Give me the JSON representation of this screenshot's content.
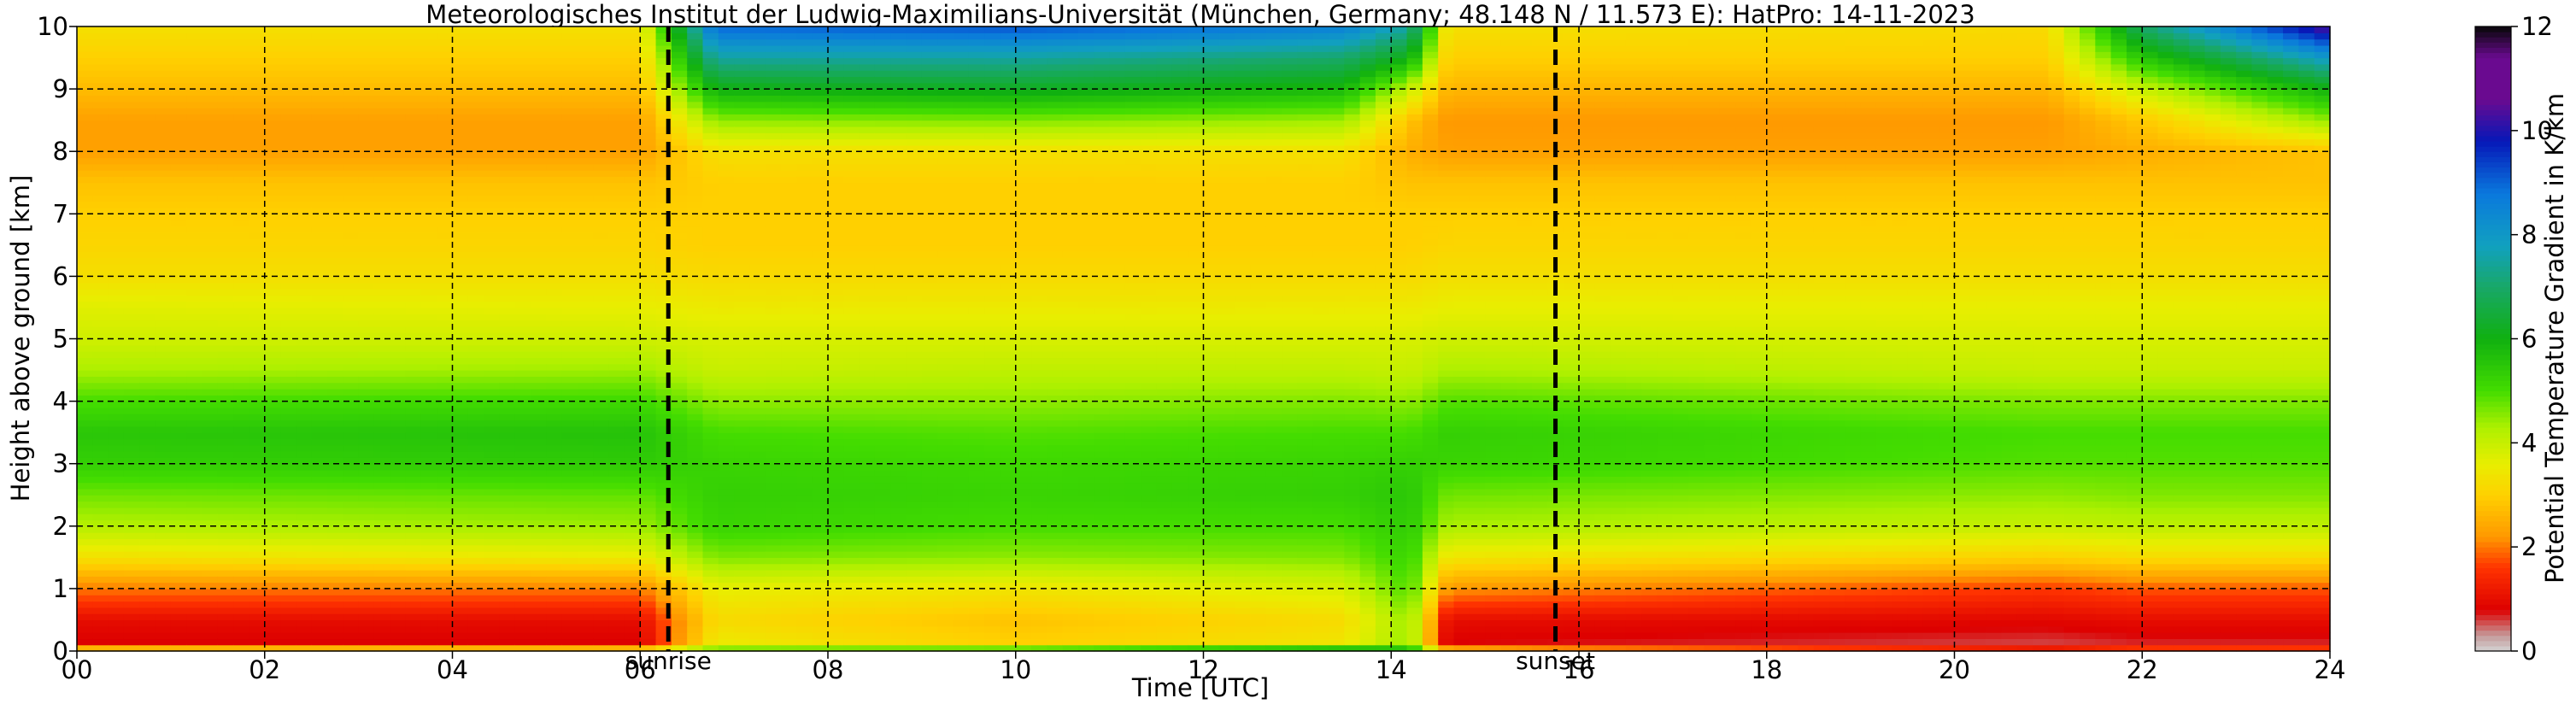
{
  "chart_data": {
    "type": "heatmap",
    "title": "Meteorologisches Institut der Ludwig-Maximilians-Universität (München, Germany; 48.148 N / 11.573 E):    HatPro: 14-11-2023",
    "xlabel": "Time [UTC]",
    "ylabel": "Height above ground [km]",
    "colorbar_label": "Potential Temperature Gradient in K/km",
    "xlim": [
      0,
      24
    ],
    "ylim": [
      0,
      10
    ],
    "clim": [
      0,
      12
    ],
    "x_ticks": [
      0,
      2,
      4,
      6,
      8,
      10,
      12,
      14,
      16,
      18,
      20,
      22,
      24
    ],
    "x_tick_labels": [
      "00",
      "02",
      "04",
      "06",
      "08",
      "10",
      "12",
      "14",
      "16",
      "18",
      "20",
      "22",
      "24"
    ],
    "y_ticks": [
      0,
      1,
      2,
      3,
      4,
      5,
      6,
      7,
      8,
      9,
      10
    ],
    "y_tick_labels": [
      "0",
      "1",
      "2",
      "3",
      "4",
      "5",
      "6",
      "7",
      "8",
      "9",
      "10"
    ],
    "colorbar_ticks": [
      0,
      2,
      4,
      6,
      8,
      10,
      12
    ],
    "colorbar_tick_labels": [
      "0",
      "2",
      "4",
      "6",
      "8",
      "10",
      "12"
    ],
    "grid": true,
    "markers": [
      {
        "label": "sunrise",
        "time": 6.3
      },
      {
        "label": "sunset",
        "time": 15.75
      }
    ],
    "colormap": [
      [
        0,
        "#d3d3d3"
      ],
      [
        0.3,
        "#c49a9a"
      ],
      [
        0.8,
        "#dd0000"
      ],
      [
        1.6,
        "#ff3300"
      ],
      [
        2.2,
        "#ff9900"
      ],
      [
        3.0,
        "#ffd000"
      ],
      [
        3.6,
        "#e8ee00"
      ],
      [
        4.3,
        "#aef000"
      ],
      [
        5.0,
        "#44dd00"
      ],
      [
        6.0,
        "#10b010"
      ],
      [
        7.0,
        "#18a868"
      ],
      [
        7.8,
        "#11a0c0"
      ],
      [
        8.8,
        "#0a78dd"
      ],
      [
        9.8,
        "#0618b8"
      ],
      [
        10.6,
        "#6a0a90"
      ],
      [
        11.4,
        "#6a0a90"
      ],
      [
        12,
        "#080808"
      ]
    ],
    "profile_heights": [
      0,
      0.15,
      0.5,
      1.0,
      1.5,
      2.0,
      2.5,
      3.0,
      3.5,
      4.0,
      4.5,
      5.0,
      5.5,
      6.0,
      6.5,
      7.0,
      7.5,
      8.0,
      8.5,
      9.0,
      9.5,
      10.0
    ],
    "profiles": [
      {
        "time": 0.0,
        "values": [
          3.5,
          0.8,
          1.0,
          2.0,
          3.3,
          4.2,
          4.7,
          5.3,
          5.5,
          5.0,
          4.3,
          3.9,
          3.7,
          3.3,
          3.1,
          3.0,
          2.8,
          2.3,
          2.3,
          2.7,
          3.0,
          3.3
        ]
      },
      {
        "time": 6.0,
        "values": [
          3.5,
          0.8,
          1.0,
          2.0,
          3.5,
          4.4,
          4.8,
          5.4,
          5.6,
          5.1,
          4.4,
          3.9,
          3.6,
          3.3,
          3.1,
          3.0,
          2.8,
          2.3,
          2.3,
          2.7,
          3.0,
          3.3
        ]
      },
      {
        "time": 6.8,
        "values": [
          5.0,
          3.5,
          3.2,
          3.6,
          4.6,
          5.2,
          5.3,
          5.2,
          5.0,
          4.5,
          4.0,
          3.8,
          3.5,
          3.2,
          3.0,
          3.0,
          3.0,
          3.3,
          4.5,
          6.0,
          7.5,
          9.0
        ]
      },
      {
        "time": 10.0,
        "values": [
          5.5,
          3.0,
          2.8,
          3.4,
          4.5,
          5.0,
          5.2,
          5.1,
          4.9,
          4.5,
          4.1,
          3.8,
          3.5,
          3.2,
          3.0,
          3.0,
          3.0,
          3.3,
          4.6,
          6.2,
          7.5,
          9.2
        ]
      },
      {
        "time": 13.5,
        "values": [
          6.5,
          3.4,
          3.2,
          3.8,
          4.6,
          5.0,
          5.3,
          5.2,
          5.0,
          4.6,
          4.1,
          3.8,
          3.5,
          3.2,
          3.0,
          3.0,
          3.0,
          3.3,
          4.4,
          5.8,
          7.0,
          8.6
        ]
      },
      {
        "time": 14.2,
        "values": [
          6.0,
          4.5,
          4.5,
          5.0,
          5.2,
          5.4,
          5.5,
          5.3,
          5.0,
          4.5,
          4.0,
          3.8,
          3.5,
          3.2,
          3.0,
          3.0,
          2.8,
          2.5,
          2.8,
          4.0,
          6.0,
          7.5
        ]
      },
      {
        "time": 14.6,
        "values": [
          3.0,
          0.8,
          1.0,
          2.2,
          3.4,
          4.3,
          4.7,
          5.2,
          5.3,
          4.9,
          4.3,
          3.9,
          3.6,
          3.3,
          3.1,
          3.0,
          2.8,
          2.3,
          2.2,
          2.6,
          3.0,
          3.3
        ]
      },
      {
        "time": 21.0,
        "values": [
          1.5,
          0.6,
          0.9,
          1.6,
          3.0,
          4.0,
          4.5,
          4.9,
          5.0,
          4.6,
          4.0,
          3.8,
          3.6,
          3.3,
          3.1,
          3.0,
          2.8,
          2.3,
          2.2,
          2.6,
          3.0,
          3.2
        ]
      },
      {
        "time": 22.0,
        "values": [
          2.0,
          0.7,
          1.0,
          1.8,
          3.2,
          4.1,
          4.6,
          4.9,
          5.0,
          4.6,
          4.0,
          3.8,
          3.6,
          3.3,
          3.1,
          3.0,
          2.8,
          2.5,
          2.9,
          4.0,
          5.5,
          7.0
        ]
      },
      {
        "time": 24.0,
        "values": [
          2.0,
          0.7,
          1.0,
          1.8,
          3.2,
          4.1,
          4.6,
          4.9,
          5.0,
          4.6,
          4.0,
          3.8,
          3.6,
          3.3,
          3.1,
          3.0,
          2.8,
          2.8,
          4.5,
          6.0,
          8.0,
          10.5
        ]
      }
    ]
  }
}
